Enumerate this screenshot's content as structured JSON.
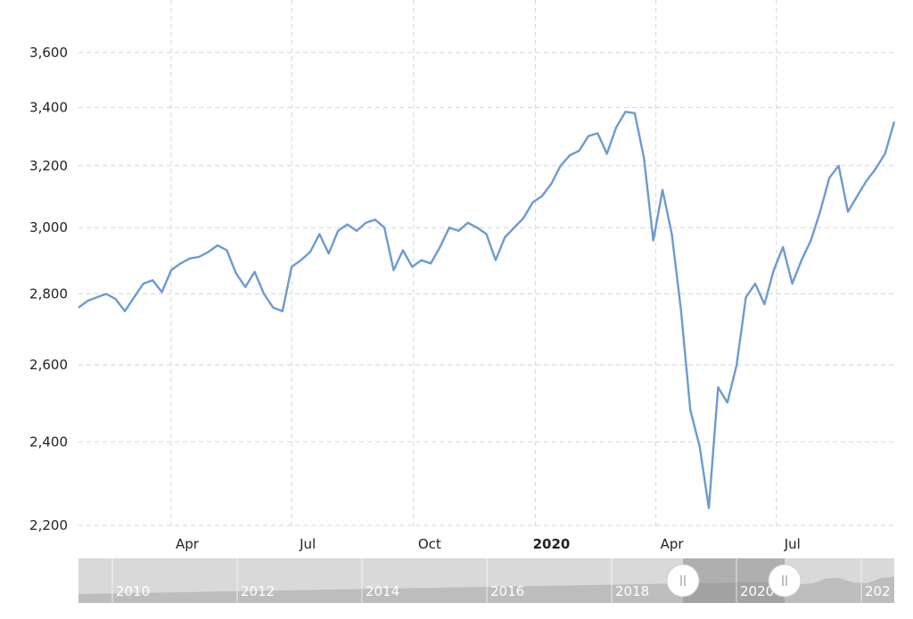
{
  "chart_data": {
    "type": "line",
    "title": "",
    "xlabel": "",
    "ylabel": "",
    "y_scale": "log",
    "ylim": [
      2200,
      3600
    ],
    "grid": true,
    "legend": "none",
    "y_ticks": [
      {
        "value": 2200,
        "label": "2,200"
      },
      {
        "value": 2400,
        "label": "2,400"
      },
      {
        "value": 2600,
        "label": "2,600"
      },
      {
        "value": 2800,
        "label": "2,800"
      },
      {
        "value": 3000,
        "label": "3,000"
      },
      {
        "value": 3200,
        "label": "3,200"
      },
      {
        "value": 3400,
        "label": "3,400"
      },
      {
        "value": 3600,
        "label": "3,600"
      }
    ],
    "x_ticks": [
      {
        "date": "2019-04-01",
        "label": "Apr",
        "bold": false
      },
      {
        "date": "2019-07-01",
        "label": "Jul",
        "bold": false
      },
      {
        "date": "2019-10-01",
        "label": "Oct",
        "bold": false
      },
      {
        "date": "2020-01-01",
        "label": "2020",
        "bold": true
      },
      {
        "date": "2020-04-01",
        "label": "Apr",
        "bold": false
      },
      {
        "date": "2020-07-01",
        "label": "Jul",
        "bold": false
      }
    ],
    "x_range": [
      "2019-01-21",
      "2020-09-28"
    ],
    "line_color": "#6b9bd1",
    "series": [
      {
        "name": "",
        "points": [
          [
            "2019-01-21",
            2760
          ],
          [
            "2019-01-28",
            2780
          ],
          [
            "2019-02-04",
            2790
          ],
          [
            "2019-02-11",
            2800
          ],
          [
            "2019-02-18",
            2785
          ],
          [
            "2019-02-25",
            2750
          ],
          [
            "2019-03-04",
            2790
          ],
          [
            "2019-03-11",
            2830
          ],
          [
            "2019-03-18",
            2840
          ],
          [
            "2019-03-25",
            2805
          ],
          [
            "2019-04-01",
            2870
          ],
          [
            "2019-04-08",
            2890
          ],
          [
            "2019-04-15",
            2905
          ],
          [
            "2019-04-22",
            2910
          ],
          [
            "2019-04-29",
            2925
          ],
          [
            "2019-05-06",
            2945
          ],
          [
            "2019-05-13",
            2930
          ],
          [
            "2019-05-20",
            2860
          ],
          [
            "2019-05-27",
            2820
          ],
          [
            "2019-06-03",
            2865
          ],
          [
            "2019-06-10",
            2800
          ],
          [
            "2019-06-17",
            2760
          ],
          [
            "2019-06-24",
            2750
          ],
          [
            "2019-07-01",
            2880
          ],
          [
            "2019-07-08",
            2900
          ],
          [
            "2019-07-15",
            2925
          ],
          [
            "2019-07-22",
            2980
          ],
          [
            "2019-07-29",
            2920
          ],
          [
            "2019-08-05",
            2990
          ],
          [
            "2019-08-12",
            3010
          ],
          [
            "2019-08-19",
            2990
          ],
          [
            "2019-08-26",
            3015
          ],
          [
            "2019-09-02",
            3025
          ],
          [
            "2019-09-09",
            3000
          ],
          [
            "2019-09-16",
            2870
          ],
          [
            "2019-09-23",
            2930
          ],
          [
            "2019-09-30",
            2880
          ],
          [
            "2019-10-07",
            2900
          ],
          [
            "2019-10-14",
            2890
          ],
          [
            "2019-10-21",
            2940
          ],
          [
            "2019-10-28",
            3000
          ],
          [
            "2019-11-04",
            2990
          ],
          [
            "2019-11-11",
            3015
          ],
          [
            "2019-11-18",
            3000
          ],
          [
            "2019-11-25",
            2980
          ],
          [
            "2019-12-02",
            2900
          ],
          [
            "2019-12-09",
            2970
          ],
          [
            "2019-12-16",
            3000
          ],
          [
            "2019-12-23",
            3030
          ],
          [
            "2019-12-30",
            3080
          ],
          [
            "2020-01-06",
            3100
          ],
          [
            "2020-01-13",
            3140
          ],
          [
            "2020-01-20",
            3200
          ],
          [
            "2020-01-27",
            3235
          ],
          [
            "2020-02-03",
            3250
          ],
          [
            "2020-02-10",
            3300
          ],
          [
            "2020-02-17",
            3310
          ],
          [
            "2020-02-24",
            3240
          ],
          [
            "2020-03-02",
            3330
          ],
          [
            "2020-03-09",
            3385
          ],
          [
            "2020-03-16",
            3380
          ],
          [
            "2020-03-23",
            3225
          ],
          [
            "2020-03-30",
            2960
          ],
          [
            "2020-04-06",
            3120
          ],
          [
            "2020-04-13",
            2980
          ],
          [
            "2020-04-20",
            2750
          ],
          [
            "2020-04-27",
            2480
          ],
          [
            "2020-05-04",
            2390
          ],
          [
            "2020-05-11",
            2240
          ],
          [
            "2020-05-18",
            2540
          ],
          [
            "2020-05-25",
            2500
          ],
          [
            "2020-06-01",
            2600
          ],
          [
            "2020-06-08",
            2790
          ],
          [
            "2020-06-15",
            2830
          ],
          [
            "2020-06-22",
            2770
          ],
          [
            "2020-06-29",
            2870
          ],
          [
            "2020-07-06",
            2940
          ],
          [
            "2020-07-13",
            2830
          ],
          [
            "2020-07-20",
            2900
          ],
          [
            "2020-07-27",
            2960
          ],
          [
            "2020-08-03",
            3050
          ],
          [
            "2020-08-10",
            3160
          ],
          [
            "2020-08-17",
            3200
          ],
          [
            "2020-08-24",
            3050
          ],
          [
            "2020-08-31",
            3100
          ],
          [
            "2020-09-07",
            3150
          ],
          [
            "2020-09-14",
            3190
          ],
          [
            "2020-09-21",
            3240
          ],
          [
            "2020-09-28",
            3350
          ]
        ]
      }
    ]
  },
  "navigator": {
    "labels": [
      "2010",
      "2012",
      "2014",
      "2016",
      "2018",
      "2020",
      "202"
    ]
  }
}
